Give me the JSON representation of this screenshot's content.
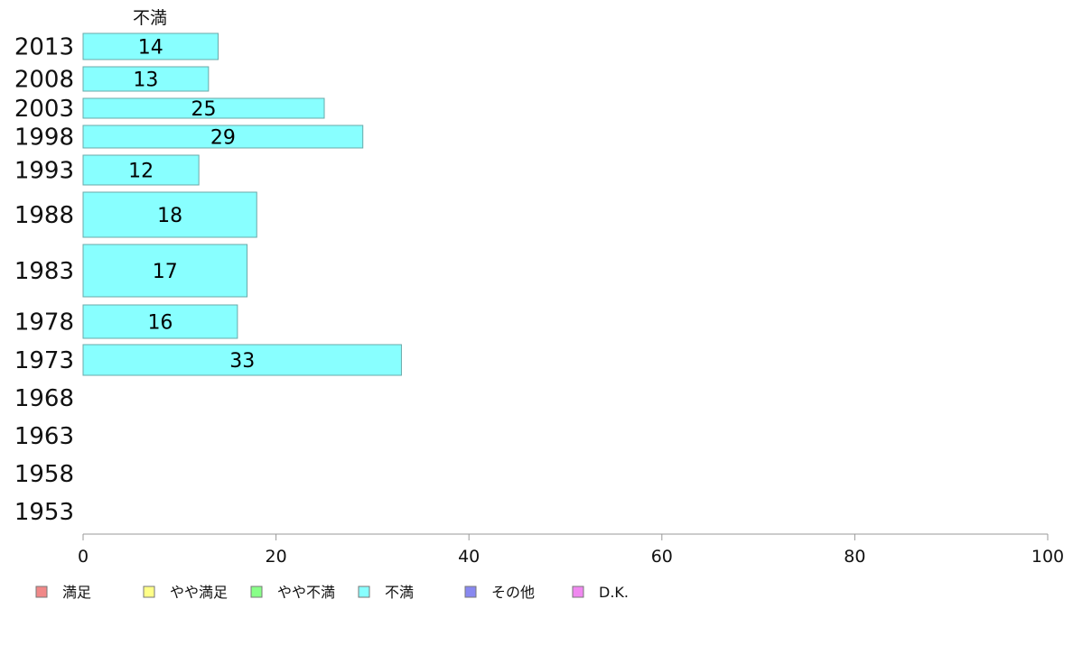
{
  "chart_data": {
    "type": "bar",
    "orientation": "horizontal",
    "series_title": "不満",
    "categories": [
      "2013",
      "2008",
      "2003",
      "1998",
      "1993",
      "1988",
      "1983",
      "1978",
      "1973",
      "1968",
      "1963",
      "1958",
      "1953"
    ],
    "series": [
      {
        "name": "不満",
        "color": "#88ffff",
        "values": [
          14,
          13,
          25,
          29,
          12,
          18,
          17,
          16,
          33,
          null,
          null,
          null,
          null
        ]
      }
    ],
    "xlim": [
      0,
      100
    ],
    "xticks": [
      0,
      20,
      40,
      60,
      80,
      100
    ],
    "grid": false,
    "legend_position": "bottom",
    "legend": [
      {
        "label": "満足",
        "color": "#f08888"
      },
      {
        "label": "やや満足",
        "color": "#ffff88"
      },
      {
        "label": "やや不満",
        "color": "#88ff88"
      },
      {
        "label": "不満",
        "color": "#88ffff"
      },
      {
        "label": "その他",
        "color": "#8888f0"
      },
      {
        "label": "D.K.",
        "color": "#f088f0"
      }
    ]
  }
}
